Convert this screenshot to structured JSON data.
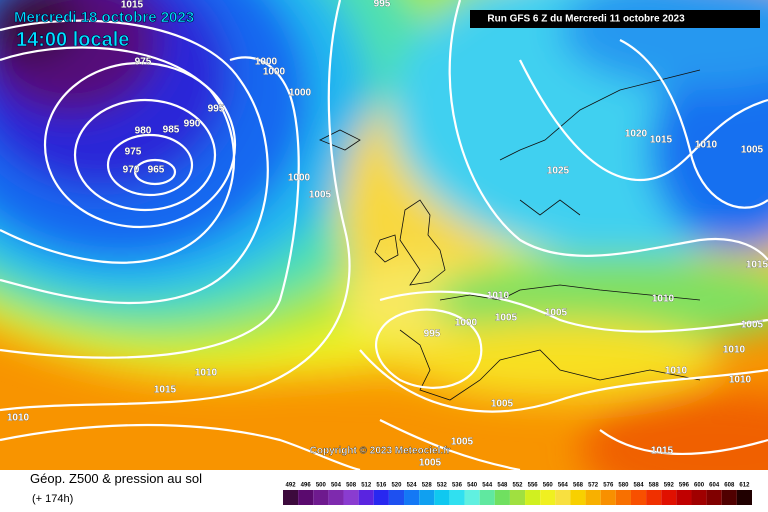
{
  "header": {
    "valid_date": "Mercredi 18 octobre 2023",
    "valid_time": "14:00 locale",
    "run_info": "Run GFS 6 Z du Mercredi 11 octobre 2023",
    "copyright": "Copyright © 2023 Meteociel.fr"
  },
  "footer": {
    "title": "Géop. Z500 & pression au sol",
    "lead_time": "(+ 174h)"
  },
  "legend": {
    "values": [
      492,
      496,
      500,
      504,
      508,
      512,
      516,
      520,
      524,
      528,
      532,
      536,
      540,
      544,
      548,
      552,
      556,
      560,
      564,
      568,
      572,
      576,
      580,
      584,
      588,
      592,
      596,
      600,
      604,
      608,
      612
    ],
    "colors": [
      "#3c0a3c",
      "#5a0a6e",
      "#6e1a8e",
      "#7e2aae",
      "#8a3cd0",
      "#5a24e0",
      "#2828f0",
      "#1e50f0",
      "#1478f5",
      "#10a0f0",
      "#10c8f0",
      "#30e0f0",
      "#60f0e0",
      "#60e8a0",
      "#70e060",
      "#a0e040",
      "#d0f020",
      "#f0f020",
      "#f8e040",
      "#f8d000",
      "#f8b000",
      "#f89000",
      "#f87000",
      "#f85000",
      "#f03000",
      "#e01000",
      "#c00000",
      "#a00000",
      "#800000",
      "#500000",
      "#200000"
    ]
  },
  "isobar_labels": [
    995,
    1015,
    975,
    1000,
    1000,
    1000,
    995,
    990,
    985,
    980,
    975,
    970,
    965,
    1000,
    1005,
    1025,
    1020,
    1015,
    1010,
    1005,
    1015,
    1010,
    1010,
    1005,
    1005,
    1000,
    995,
    1005,
    1010,
    1010,
    1015,
    1010,
    1010,
    1005,
    1005,
    1005,
    1015,
    1010
  ]
}
